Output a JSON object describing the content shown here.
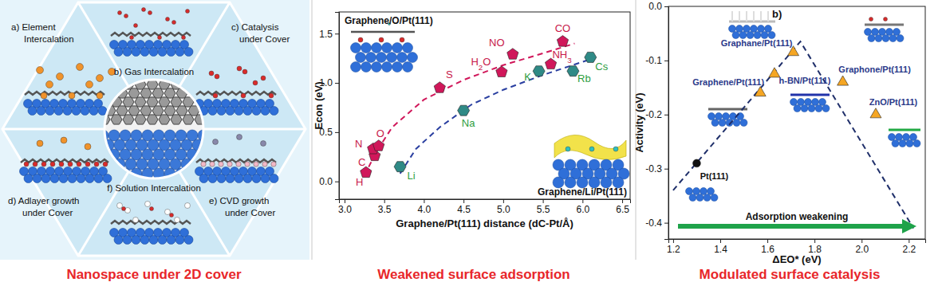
{
  "diagram": {
    "panels": [
      {
        "lines": [
          "a) Element",
          "Intercalation"
        ]
      },
      {
        "lines": [
          "b) Gas Intercalation"
        ]
      },
      {
        "lines": [
          "c) Catalysis",
          "under Cover"
        ]
      },
      {
        "lines": [
          "d) Adlayer growth",
          "under Cover"
        ]
      },
      {
        "lines": [
          "e) CVD growth",
          "under Cover"
        ]
      },
      {
        "lines": [
          "f) Solution Intercalation"
        ]
      }
    ]
  },
  "captions": [
    "Nanospace under 2D cover",
    "Weakened surface adsorption",
    "Modulated surface catalysis"
  ],
  "chart_data": [
    {
      "type": "scatter",
      "x_label": "Graphene/Pt(111) distance (dC-Pt/Å)",
      "y_label": "Econ (eV)",
      "annotations": [
        "Graphene/O/Pt(111)",
        "Graphene/Li/Pt(111)"
      ],
      "xlim": [
        2.93,
        6.6
      ],
      "xticks": [
        {
          "value": 3,
          "label": "3.0"
        },
        3.5,
        {
          "value": 4,
          "label": "4.0"
        },
        4.5,
        {
          "value": 5,
          "label": "5.0"
        },
        5.5,
        {
          "value": 6,
          "label": "6.0"
        },
        6.5
      ],
      "ylim": [
        -0.18,
        1.72
      ],
      "yticks": [
        {
          "value": 0,
          "label": "0.0"
        },
        0.5,
        {
          "value": 1,
          "label": "1.0"
        },
        1.5
      ],
      "series": [
        {
          "type": "scatter",
          "marker": "pentagon",
          "color": "#d0175a",
          "x": [
            3.27,
            3.38,
            3.36,
            3.43,
            4.2,
            4.98,
            5.12,
            5.6,
            5.75
          ],
          "values": [
            0.09,
            0.26,
            0.33,
            0.36,
            0.95,
            1.11,
            1.29,
            1.19,
            1.42
          ],
          "labels": [
            "H",
            "C",
            "N",
            "O",
            "S",
            "H2O",
            "NO",
            "NH3",
            "CO"
          ]
        },
        {
          "type": "scatter",
          "marker": "hexagon",
          "color": "#2f8a86",
          "x": [
            3.7,
            4.5,
            5.45,
            5.88,
            6.1
          ],
          "values": [
            0.15,
            0.72,
            1.12,
            1.12,
            1.26
          ],
          "labels": [
            "Li",
            "Na",
            "K",
            "Rb",
            "Cs"
          ]
        },
        {
          "type": "line",
          "line_style": "dashed",
          "color": "#d0175a",
          "x": [
            3.25,
            3.4,
            3.6,
            4.0,
            4.5,
            5.0,
            5.5,
            5.9
          ],
          "values": [
            0.06,
            0.3,
            0.55,
            0.83,
            1.03,
            1.18,
            1.3,
            1.4
          ]
        },
        {
          "type": "line",
          "line_style": "dashed",
          "color": "#2a3fa0",
          "x": [
            3.7,
            3.9,
            4.2,
            4.6,
            5.0,
            5.5,
            6.1
          ],
          "values": [
            0.08,
            0.33,
            0.55,
            0.78,
            0.93,
            1.08,
            1.24
          ]
        }
      ]
    },
    {
      "type": "scatter",
      "x_label": "ΔEO* (eV)",
      "y_label": "Activity (eV)",
      "annotations": [
        "b)",
        "Adsorption weakening"
      ],
      "xlim": [
        1.18,
        2.27
      ],
      "xticks": [
        1.2,
        1.4,
        1.6,
        1.8,
        {
          "value": 2,
          "label": "2.0"
        },
        2.2
      ],
      "ylim": [
        -0.43,
        0
      ],
      "yticks": [
        -0.4,
        -0.3,
        -0.2,
        -0.1,
        {
          "value": 0,
          "label": "0.0"
        }
      ],
      "series": [
        {
          "type": "scatter",
          "marker": "circle",
          "color": "#111111",
          "x": [
            1.3
          ],
          "values": [
            -0.29
          ],
          "labels": [
            "Pt(111)"
          ]
        },
        {
          "type": "scatter",
          "marker": "triangle",
          "color": "#f5a623",
          "x": [
            1.57,
            1.63,
            1.71,
            1.92,
            2.06
          ],
          "values": [
            -0.16,
            -0.125,
            -0.085,
            -0.14,
            -0.2
          ],
          "labels": [
            "Graphene/Pt(111)",
            "h-BN/Pt(111)",
            "Graphane/Pt(111)",
            "Graphone/Pt(111)",
            "ZnO/Pt(111)"
          ]
        },
        {
          "type": "line",
          "line_style": "dashed",
          "color": "#1f2f6a",
          "x": [
            1.2,
            1.74,
            2.22
          ],
          "values": [
            -0.34,
            -0.065,
            -0.41
          ]
        }
      ]
    }
  ]
}
